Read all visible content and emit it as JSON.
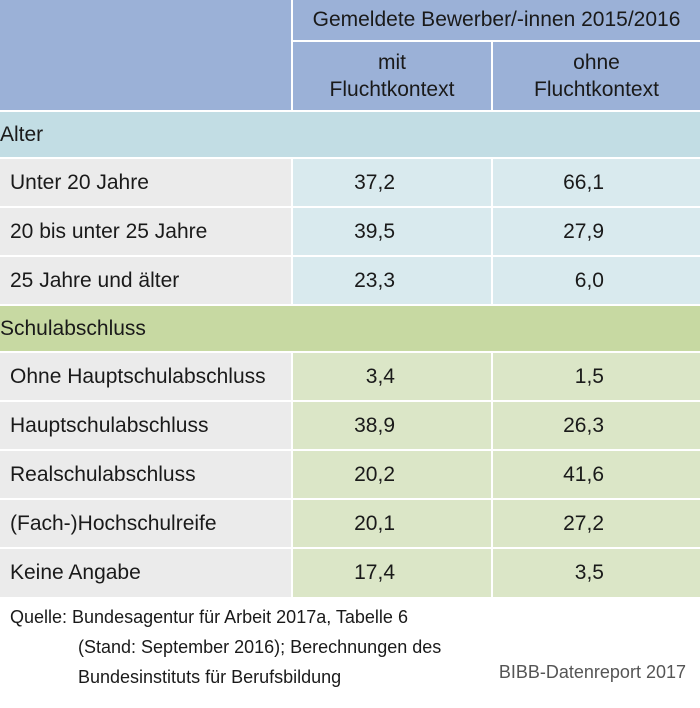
{
  "header": {
    "group_title": "Gemeldete Bewerber/-innen 2015/2016",
    "col_mit": [
      "mit",
      "Fluchtkontext"
    ],
    "col_ohne": [
      "ohne",
      "Fluchtkontext"
    ]
  },
  "sections": {
    "alter": {
      "title": "Alter",
      "rows": [
        {
          "label": "Unter 20 Jahre",
          "mit": "37,2",
          "ohne": "66,1"
        },
        {
          "label": "20 bis unter 25 Jahre",
          "mit": "39,5",
          "ohne": "27,9"
        },
        {
          "label": "25 Jahre und älter",
          "mit": "23,3",
          "ohne": "6,0"
        }
      ]
    },
    "schul": {
      "title": "Schulabschluss",
      "rows": [
        {
          "label": "Ohne Hauptschulabschluss",
          "mit": "3,4",
          "ohne": "1,5"
        },
        {
          "label": "Hauptschulabschluss",
          "mit": "38,9",
          "ohne": "26,3"
        },
        {
          "label": "Realschulabschluss",
          "mit": "20,2",
          "ohne": "41,6"
        },
        {
          "label": "(Fach-)Hochschulreife",
          "mit": "20,1",
          "ohne": "27,2"
        },
        {
          "label": "Keine Angabe",
          "mit": "17,4",
          "ohne": "3,5"
        }
      ]
    }
  },
  "footer": {
    "source_lines": [
      "Quelle: Bundesagentur für Arbeit 2017a, Tabelle 6",
      "(Stand: September 2016); Berechnungen des",
      "Bundesinstituts für Berufsbildung"
    ],
    "credit": "BIBB-Datenreport 2017"
  },
  "colors": {
    "header": "#9bb1d7",
    "alter_section": "#c2dde4",
    "alter_values": "#d9eaee",
    "schul_section": "#c7d9a2",
    "schul_values": "#dbe6c7",
    "label_cells": "#ebebeb"
  }
}
